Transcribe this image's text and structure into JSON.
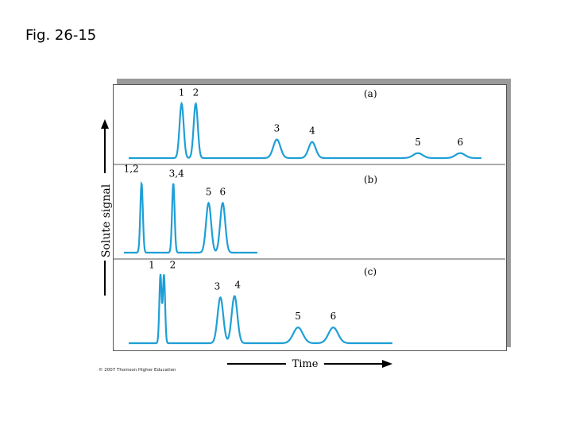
{
  "slide": {
    "title": "Fig. 26-15",
    "credit": "© 2007 Thomson Higher Education"
  },
  "chart_data": {
    "type": "line",
    "ylabel": "Solute signal",
    "xlabel": "Time",
    "line_color": "#1e9fd6",
    "panels": [
      {
        "label": "(a)",
        "peaks": [
          {
            "labels": "1",
            "x": 0.15,
            "height": 0.88
          },
          {
            "labels": "2",
            "x": 0.19,
            "height": 0.88
          },
          {
            "labels": "3",
            "x": 0.42,
            "height": 0.3
          },
          {
            "labels": "4",
            "x": 0.52,
            "height": 0.26
          },
          {
            "labels": "5",
            "x": 0.82,
            "height": 0.08
          },
          {
            "labels": "6",
            "x": 0.94,
            "height": 0.08
          }
        ]
      },
      {
        "label": "(b)",
        "peaks": [
          {
            "labels": "1,2",
            "x": 0.05,
            "height": 0.95
          },
          {
            "labels": "3,4",
            "x": 0.14,
            "height": 0.95
          },
          {
            "labels": "5",
            "x": 0.24,
            "height": 0.68
          },
          {
            "labels": "6",
            "x": 0.28,
            "height": 0.68
          }
        ]
      },
      {
        "label": "(c)",
        "peaks": [
          {
            "labels": "1",
            "x": 0.09,
            "height": 0.96
          },
          {
            "labels": "2",
            "x": 0.1,
            "height": 0.96
          },
          {
            "labels": "3",
            "x": 0.26,
            "height": 0.64
          },
          {
            "labels": "4",
            "x": 0.3,
            "height": 0.66
          },
          {
            "labels": "5",
            "x": 0.48,
            "height": 0.22
          },
          {
            "labels": "6",
            "x": 0.58,
            "height": 0.22
          }
        ]
      }
    ]
  }
}
